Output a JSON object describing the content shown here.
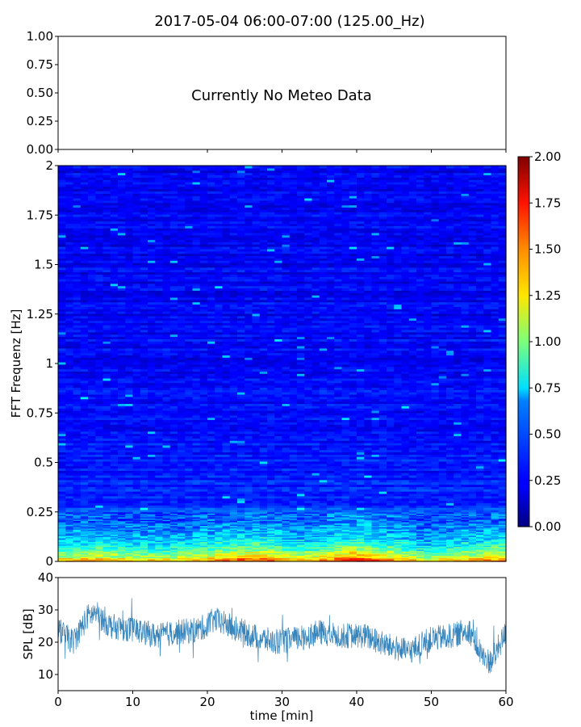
{
  "figure": {
    "title": "2017-05-04 06:00-07:00 (125.00_Hz)"
  },
  "meteo_panel": {
    "message": "Currently No Meteo Data",
    "yticks": [
      "1.00",
      "0.75",
      "0.50",
      "0.25",
      "0.00"
    ]
  },
  "chart_data": [
    {
      "type": "heatmap",
      "name": "spectrogram",
      "ylabel": "FFT Frequenz [Hz]",
      "xlim": [
        0,
        60
      ],
      "ylim": [
        0,
        2
      ],
      "yticks": [
        "2",
        "1.75",
        "1.5",
        "1.25",
        "1",
        "0.75",
        "0.5",
        "0.25",
        "0"
      ],
      "colormap": "jet",
      "colorbar": {
        "range": [
          0,
          2
        ],
        "ticks": [
          "2.00",
          "1.75",
          "1.50",
          "1.25",
          "1.00",
          "0.75",
          "0.50",
          "0.25",
          "0.00"
        ]
      },
      "frequency_band_levels": [
        {
          "freq": 0.01,
          "level": 1.3
        },
        {
          "freq": 0.03,
          "level": 1.05
        },
        {
          "freq": 0.06,
          "level": 0.85
        },
        {
          "freq": 0.12,
          "level": 0.6
        },
        {
          "freq": 0.2,
          "level": 0.45
        },
        {
          "freq": 0.3,
          "level": 0.33
        },
        {
          "freq": 0.5,
          "level": 0.28
        },
        {
          "freq": 1.0,
          "level": 0.25
        },
        {
          "freq": 2.0,
          "level": 0.23
        }
      ],
      "time_activity": [
        {
          "t": 0,
          "level": 1.0
        },
        {
          "t": 5,
          "level": 1.05
        },
        {
          "t": 10,
          "level": 1.0
        },
        {
          "t": 15,
          "level": 0.95
        },
        {
          "t": 22,
          "level": 1.15
        },
        {
          "t": 28,
          "level": 1.2
        },
        {
          "t": 33,
          "level": 1.0
        },
        {
          "t": 40,
          "level": 1.3
        },
        {
          "t": 45,
          "level": 1.1
        },
        {
          "t": 50,
          "level": 0.9
        },
        {
          "t": 55,
          "level": 1.05
        },
        {
          "t": 60,
          "level": 1.15
        }
      ]
    },
    {
      "type": "line",
      "name": "spl",
      "xlabel": "time [min]",
      "ylabel": "SPL [dB]",
      "xlim": [
        0,
        60
      ],
      "ylim": [
        5,
        40
      ],
      "xticks": [
        "0",
        "10",
        "20",
        "30",
        "40",
        "50",
        "60"
      ],
      "yticks": [
        "40",
        "30",
        "20",
        "10"
      ],
      "color": "#1f77b4",
      "envelope": [
        {
          "t": 0,
          "mean": 24,
          "spread": 4
        },
        {
          "t": 2,
          "mean": 20,
          "spread": 4
        },
        {
          "t": 4,
          "mean": 28,
          "spread": 4
        },
        {
          "t": 5,
          "mean": 29,
          "spread": 4
        },
        {
          "t": 7,
          "mean": 25,
          "spread": 4
        },
        {
          "t": 10,
          "mean": 24,
          "spread": 4
        },
        {
          "t": 13,
          "mean": 22,
          "spread": 4
        },
        {
          "t": 16,
          "mean": 23,
          "spread": 4
        },
        {
          "t": 19,
          "mean": 24,
          "spread": 4
        },
        {
          "t": 21,
          "mean": 27,
          "spread": 4
        },
        {
          "t": 23,
          "mean": 25,
          "spread": 4
        },
        {
          "t": 26,
          "mean": 22,
          "spread": 4
        },
        {
          "t": 29,
          "mean": 20,
          "spread": 4
        },
        {
          "t": 32,
          "mean": 21,
          "spread": 4
        },
        {
          "t": 35,
          "mean": 23,
          "spread": 4
        },
        {
          "t": 38,
          "mean": 22,
          "spread": 4
        },
        {
          "t": 41,
          "mean": 22,
          "spread": 4
        },
        {
          "t": 44,
          "mean": 19,
          "spread": 4
        },
        {
          "t": 47,
          "mean": 17,
          "spread": 4
        },
        {
          "t": 50,
          "mean": 21,
          "spread": 4
        },
        {
          "t": 53,
          "mean": 22,
          "spread": 4
        },
        {
          "t": 55,
          "mean": 24,
          "spread": 4
        },
        {
          "t": 57,
          "mean": 15,
          "spread": 4
        },
        {
          "t": 58,
          "mean": 14,
          "spread": 4
        },
        {
          "t": 60,
          "mean": 23,
          "spread": 4
        }
      ]
    }
  ]
}
